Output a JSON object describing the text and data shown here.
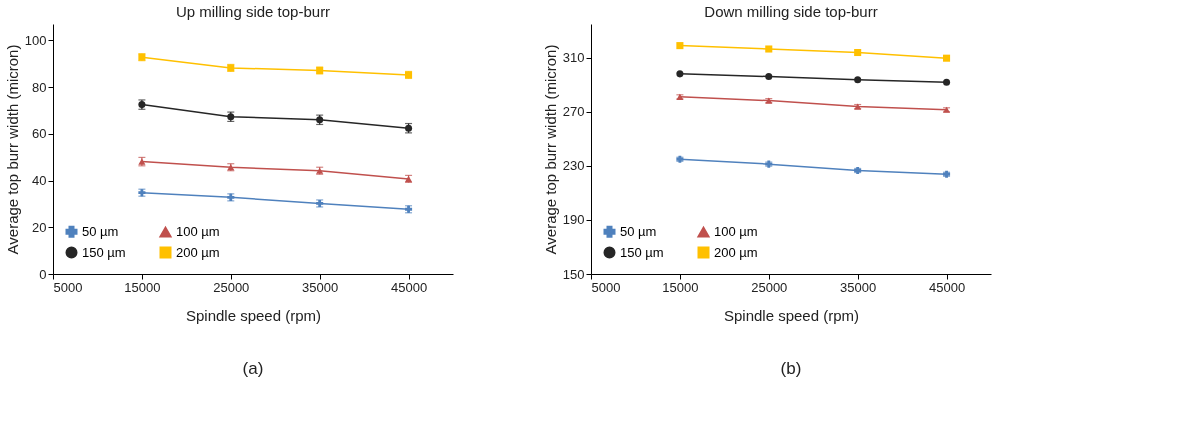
{
  "chart_data": [
    {
      "type": "line",
      "title": "Up milling side top-burr",
      "xlabel": "Spindle speed (rpm)",
      "ylabel": "Average top burr width (micron)",
      "x": [
        15000,
        25000,
        35000,
        45000
      ],
      "xlim": [
        5000,
        50000
      ],
      "xticks": [
        5000,
        15000,
        25000,
        35000,
        45000
      ],
      "ylim": [
        0,
        107
      ],
      "yticks": [
        0,
        20,
        40,
        60,
        80,
        100
      ],
      "grid": false,
      "legend": "bottom left",
      "annotations": [
        "(a)"
      ],
      "series": [
        {
          "name": "50 µm",
          "color": "#4f81bd",
          "marker": "cross",
          "values": [
            34.8,
            32.8,
            30.2,
            27.7
          ],
          "errors": [
            1.5,
            1.5,
            1.5,
            1.5
          ]
        },
        {
          "name": "100 µm",
          "color": "#c0504d",
          "marker": "triangle",
          "values": [
            48.1,
            45.7,
            44.2,
            40.7
          ],
          "errors": [
            1.8,
            1.5,
            1.5,
            1.5
          ]
        },
        {
          "name": "150 µm",
          "color": "#262626",
          "marker": "circle",
          "values": [
            72.5,
            67.3,
            66.0,
            62.4
          ],
          "errors": [
            2.0,
            2.0,
            2.0,
            2.0
          ]
        },
        {
          "name": "200 µm",
          "color": "#ffc000",
          "marker": "square",
          "values": [
            92.8,
            88.2,
            87.1,
            85.2
          ],
          "errors": [
            1.5,
            1.5,
            1.5,
            1.5
          ]
        }
      ]
    },
    {
      "type": "line",
      "title": "Down milling side top-burr",
      "xlabel": "Spindle speed (rpm)",
      "ylabel": "Average top burr width (micron)",
      "x": [
        15000,
        25000,
        35000,
        45000
      ],
      "xlim": [
        5000,
        50000
      ],
      "xticks": [
        5000,
        15000,
        25000,
        35000,
        45000
      ],
      "ylim": [
        150,
        335
      ],
      "yticks": [
        150,
        190,
        230,
        270,
        310
      ],
      "grid": false,
      "legend": "bottom left",
      "annotations": [
        "(b)"
      ],
      "series": [
        {
          "name": "50 µm",
          "color": "#4f81bd",
          "marker": "cross",
          "values": [
            234.9,
            231.3,
            226.6,
            223.8
          ],
          "errors": [
            1.5,
            1.5,
            1.5,
            1.5
          ]
        },
        {
          "name": "100 µm",
          "color": "#c0504d",
          "marker": "triangle",
          "values": [
            281.1,
            278.3,
            273.9,
            271.5
          ],
          "errors": [
            1.5,
            1.5,
            1.5,
            1.5
          ]
        },
        {
          "name": "150 µm",
          "color": "#262626",
          "marker": "circle",
          "values": [
            298.1,
            296.1,
            293.7,
            291.9
          ]
        },
        {
          "name": "200 µm",
          "color": "#ffc000",
          "marker": "square",
          "values": [
            319.0,
            316.5,
            313.9,
            309.7
          ]
        }
      ]
    }
  ]
}
